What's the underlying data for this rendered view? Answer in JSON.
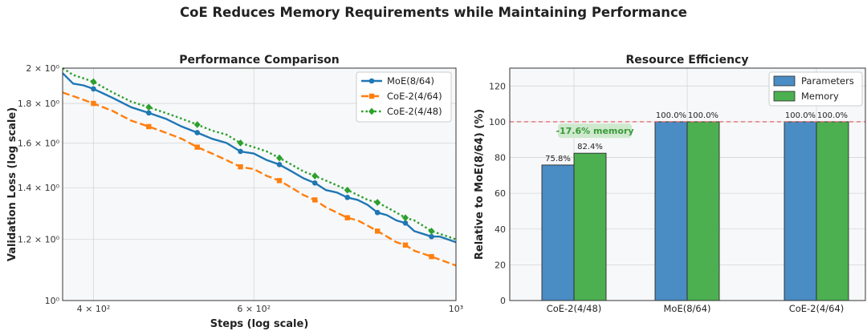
{
  "figure": {
    "suptitle": "CoE Reduces Memory Requirements while Maintaining Performance"
  },
  "chart_data": [
    {
      "type": "line",
      "title": "Performance Comparison",
      "xlabel": "Steps (log scale)",
      "ylabel": "Validation Loss (log scale)",
      "xscale": "log",
      "yscale": "log",
      "xlim": [
        370,
        1000
      ],
      "ylim": [
        1.0,
        2.0
      ],
      "xticks": [
        400,
        600,
        1000
      ],
      "xtick_labels": [
        "4 × 10²",
        "6 × 10²",
        "10³"
      ],
      "yticks": [
        1.0,
        1.2,
        1.4,
        1.6,
        1.8,
        2.0
      ],
      "ytick_labels": [
        "10⁰",
        "1.2 × 10⁰",
        "1.4 × 10⁰",
        "1.6 × 10⁰",
        "1.8 × 10⁰",
        "2 × 10⁰"
      ],
      "grid": true,
      "legend_position": "upper right",
      "series": [
        {
          "name": "MoE(8/64)",
          "color": "#1f77b4",
          "linestyle": "solid",
          "marker": "circle",
          "x": [
            370,
            380,
            390,
            400,
            420,
            440,
            460,
            480,
            500,
            520,
            540,
            560,
            580,
            600,
            620,
            640,
            660,
            680,
            700,
            720,
            740,
            760,
            780,
            800,
            820,
            840,
            860,
            880,
            900,
            920,
            940,
            960,
            980,
            1000
          ],
          "y": [
            1.97,
            1.91,
            1.9,
            1.88,
            1.83,
            1.78,
            1.75,
            1.72,
            1.68,
            1.65,
            1.62,
            1.6,
            1.56,
            1.55,
            1.52,
            1.5,
            1.47,
            1.44,
            1.42,
            1.39,
            1.38,
            1.36,
            1.35,
            1.33,
            1.3,
            1.29,
            1.27,
            1.26,
            1.23,
            1.22,
            1.21,
            1.21,
            1.2,
            1.19
          ],
          "marker_x": [
            400,
            460,
            520,
            580,
            640,
            700,
            760,
            820,
            880,
            940
          ]
        },
        {
          "name": "CoE-2(4/64)",
          "color": "#ff7f0e",
          "linestyle": "dashed",
          "marker": "square",
          "x": [
            370,
            380,
            390,
            400,
            420,
            440,
            460,
            480,
            500,
            520,
            540,
            560,
            580,
            600,
            620,
            640,
            660,
            680,
            700,
            720,
            740,
            760,
            780,
            800,
            820,
            840,
            860,
            880,
            900,
            920,
            940,
            960,
            980,
            1000
          ],
          "y": [
            1.86,
            1.84,
            1.82,
            1.8,
            1.76,
            1.71,
            1.68,
            1.65,
            1.62,
            1.58,
            1.55,
            1.52,
            1.49,
            1.48,
            1.45,
            1.43,
            1.4,
            1.37,
            1.35,
            1.32,
            1.3,
            1.28,
            1.27,
            1.25,
            1.23,
            1.21,
            1.19,
            1.18,
            1.16,
            1.15,
            1.14,
            1.13,
            1.12,
            1.11
          ],
          "marker_x": [
            400,
            460,
            520,
            580,
            640,
            700,
            760,
            820,
            880,
            940
          ]
        },
        {
          "name": "CoE-2(4/48)",
          "color": "#2ca02c",
          "linestyle": "dotted",
          "marker": "diamond",
          "x": [
            370,
            380,
            390,
            400,
            420,
            440,
            460,
            480,
            500,
            520,
            540,
            560,
            580,
            600,
            620,
            640,
            660,
            680,
            700,
            720,
            740,
            760,
            780,
            800,
            820,
            840,
            860,
            880,
            900,
            920,
            940,
            960,
            980,
            1000
          ],
          "y": [
            2.0,
            1.96,
            1.94,
            1.92,
            1.86,
            1.81,
            1.78,
            1.75,
            1.72,
            1.69,
            1.66,
            1.64,
            1.6,
            1.58,
            1.56,
            1.53,
            1.5,
            1.47,
            1.45,
            1.43,
            1.41,
            1.39,
            1.37,
            1.35,
            1.34,
            1.32,
            1.3,
            1.28,
            1.27,
            1.25,
            1.23,
            1.22,
            1.21,
            1.2
          ],
          "marker_x": [
            400,
            460,
            520,
            580,
            640,
            700,
            760,
            820,
            880,
            940
          ]
        }
      ]
    },
    {
      "type": "bar",
      "title": "Resource Efficiency",
      "xlabel": "",
      "ylabel": "Relative to MoE(8/64) (%)",
      "categories": [
        "CoE-2(4/48)",
        "MoE(8/64)",
        "CoE-2(4/64)"
      ],
      "ylim": [
        0,
        130
      ],
      "yticks": [
        0,
        20,
        40,
        60,
        80,
        100,
        120
      ],
      "grid": true,
      "legend_position": "upper right",
      "series": [
        {
          "name": "Parameters",
          "color": "#4a8cc4",
          "values": [
            75.8,
            100.0,
            100.0
          ],
          "labels": [
            "75.8%",
            "100.0%",
            "100.0%"
          ]
        },
        {
          "name": "Memory",
          "color": "#4caf50",
          "values": [
            82.4,
            100.0,
            100.0
          ],
          "labels": [
            "82.4%",
            "100.0%",
            "100.0%"
          ]
        }
      ],
      "reference_line": {
        "y": 100,
        "color": "#e05050",
        "linestyle": "dashed"
      },
      "annotation": {
        "text": "-17.6% memory",
        "category": "CoE-2(4/48)",
        "y": 95,
        "color": "#3a9a3a",
        "box_color": "#cfe9cf"
      }
    }
  ]
}
